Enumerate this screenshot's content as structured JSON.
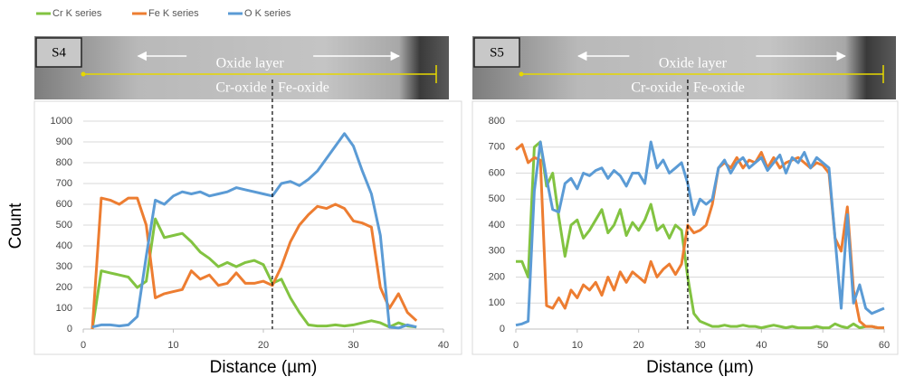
{
  "chart_data": [
    {
      "type": "line",
      "panel_label": "S4",
      "annotations": [
        "Oxide layer",
        "Cr-oxide",
        "Fe-oxide"
      ],
      "divider_x": 21,
      "ylabel": "Count",
      "xlabel": "Distance (µm)",
      "x": [
        1,
        2,
        3,
        4,
        5,
        6,
        7,
        8,
        9,
        10,
        11,
        12,
        13,
        14,
        15,
        16,
        17,
        18,
        19,
        20,
        21,
        22,
        23,
        24,
        25,
        26,
        27,
        28,
        29,
        30,
        31,
        32,
        33,
        34,
        35,
        36,
        37
      ],
      "series": [
        {
          "name": "Cr K series",
          "color": "#82c341",
          "values": [
            0,
            280,
            270,
            260,
            250,
            200,
            230,
            530,
            440,
            450,
            460,
            420,
            370,
            340,
            300,
            320,
            300,
            320,
            330,
            310,
            220,
            240,
            150,
            80,
            20,
            15,
            15,
            20,
            15,
            20,
            30,
            40,
            30,
            10,
            30,
            15,
            10
          ]
        },
        {
          "name": "Fe K series",
          "color": "#ed7d31",
          "values": [
            0,
            630,
            620,
            600,
            630,
            630,
            500,
            150,
            170,
            180,
            190,
            280,
            240,
            260,
            210,
            220,
            270,
            220,
            220,
            230,
            210,
            300,
            420,
            500,
            550,
            590,
            580,
            600,
            580,
            520,
            510,
            490,
            200,
            100,
            170,
            80,
            40
          ]
        },
        {
          "name": "O K series",
          "color": "#5b9bd5",
          "values": [
            10,
            20,
            20,
            15,
            20,
            60,
            350,
            620,
            600,
            640,
            660,
            650,
            660,
            640,
            650,
            660,
            680,
            670,
            660,
            650,
            640,
            700,
            710,
            690,
            720,
            760,
            820,
            880,
            940,
            880,
            760,
            650,
            450,
            10,
            5,
            20,
            10
          ]
        }
      ],
      "xlim": [
        0,
        40
      ],
      "xticks": [
        0,
        10,
        20,
        30,
        40
      ],
      "ylim": [
        0,
        1000
      ],
      "yticks": [
        0,
        100,
        200,
        300,
        400,
        500,
        600,
        700,
        800,
        900,
        1000
      ],
      "grid": true
    },
    {
      "type": "line",
      "panel_label": "S5",
      "annotations": [
        "Oxide layer",
        "Cr-oxide",
        "Fe-oxide"
      ],
      "divider_x": 28,
      "xlabel": "Distance (µm)",
      "x": [
        0,
        1,
        2,
        3,
        4,
        5,
        6,
        7,
        8,
        9,
        10,
        11,
        12,
        13,
        14,
        15,
        16,
        17,
        18,
        19,
        20,
        21,
        22,
        23,
        24,
        25,
        26,
        27,
        28,
        29,
        30,
        31,
        32,
        33,
        34,
        35,
        36,
        37,
        38,
        39,
        40,
        41,
        42,
        43,
        44,
        45,
        46,
        47,
        48,
        49,
        50,
        51,
        52,
        53,
        54,
        55,
        56,
        57,
        58,
        59,
        60
      ],
      "series": [
        {
          "color": "#82c341",
          "values": [
            260,
            260,
            200,
            700,
            720,
            550,
            600,
            430,
            280,
            400,
            420,
            350,
            380,
            420,
            460,
            370,
            400,
            460,
            360,
            410,
            380,
            420,
            480,
            380,
            400,
            350,
            400,
            380,
            200,
            60,
            30,
            20,
            10,
            10,
            15,
            10,
            10,
            15,
            10,
            10,
            5,
            10,
            15,
            10,
            5,
            10,
            5,
            5,
            5,
            10,
            5,
            5,
            20,
            10,
            5,
            20,
            5,
            10,
            10,
            5,
            5
          ]
        },
        {
          "color": "#ed7d31",
          "values": [
            690,
            710,
            640,
            660,
            650,
            90,
            80,
            120,
            80,
            150,
            120,
            170,
            150,
            180,
            130,
            200,
            150,
            220,
            180,
            220,
            200,
            180,
            260,
            200,
            230,
            250,
            210,
            250,
            400,
            370,
            380,
            400,
            480,
            620,
            640,
            620,
            660,
            620,
            650,
            640,
            680,
            620,
            660,
            620,
            640,
            650,
            660,
            640,
            620,
            640,
            630,
            600,
            350,
            300,
            470,
            150,
            30,
            10,
            10,
            5,
            5
          ]
        },
        {
          "color": "#5b9bd5",
          "values": [
            15,
            20,
            30,
            530,
            720,
            580,
            460,
            450,
            560,
            580,
            540,
            600,
            590,
            610,
            620,
            580,
            610,
            590,
            550,
            600,
            600,
            560,
            720,
            620,
            650,
            600,
            620,
            640,
            560,
            440,
            500,
            480,
            500,
            620,
            650,
            600,
            640,
            660,
            620,
            640,
            660,
            610,
            640,
            670,
            600,
            660,
            640,
            680,
            620,
            660,
            640,
            620,
            350,
            80,
            440,
            100,
            170,
            80,
            60,
            70,
            80
          ]
        }
      ],
      "xlim": [
        0,
        60
      ],
      "xticks": [
        0,
        10,
        20,
        30,
        40,
        50,
        60
      ],
      "ylim": [
        0,
        800
      ],
      "yticks": [
        0,
        100,
        200,
        300,
        400,
        500,
        600,
        700,
        800
      ],
      "grid": true
    }
  ]
}
